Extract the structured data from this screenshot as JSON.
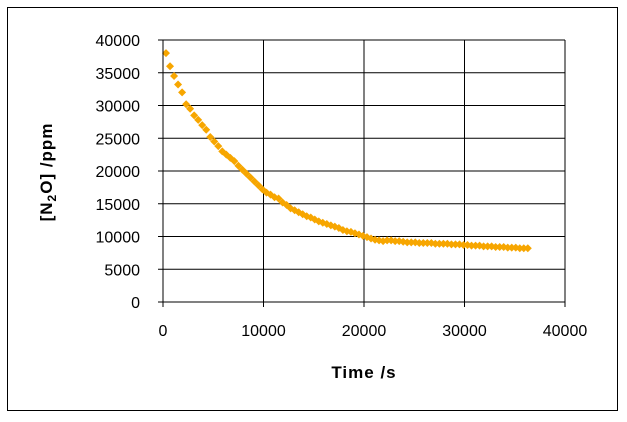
{
  "chart_data": {
    "type": "scatter",
    "xlabel": "Time /s",
    "ylabel": {
      "before": "[N",
      "sub": "2",
      "after": "O] /ppm"
    },
    "xlim": [
      0,
      40000
    ],
    "ylim": [
      0,
      40000
    ],
    "xticks": [
      "0",
      "10000",
      "20000",
      "30000",
      "40000"
    ],
    "yticks": [
      "0",
      "5000",
      "10000",
      "15000",
      "20000",
      "25000",
      "30000",
      "35000",
      "40000"
    ],
    "grid": true,
    "marker": "diamond",
    "color": "#f7a600",
    "series": [
      {
        "x": [
          300,
          700,
          1100,
          1500,
          1900,
          2300,
          2700,
          3100,
          3500,
          3900,
          4300,
          4700,
          5100,
          5500,
          5900,
          6300,
          6700,
          7100,
          7500,
          7900,
          8300,
          8700,
          9100,
          9500,
          9900,
          10300,
          10700,
          11100,
          11500,
          11900,
          12300,
          12700,
          13100,
          13500,
          13900,
          14300,
          14700,
          15100,
          15500,
          15900,
          16300,
          16700,
          17100,
          17500,
          17900,
          18300,
          18700,
          19100,
          19500,
          19900,
          20300,
          20700,
          21100,
          21500,
          21900,
          22300,
          22700,
          23100,
          23500,
          23900,
          24300,
          24700,
          25100,
          25500,
          25900,
          26300,
          26700,
          27100,
          27500,
          27900,
          28300,
          28700,
          29100,
          29500,
          29900,
          30300,
          30700,
          31100,
          31500,
          31900,
          32300,
          32700,
          33100,
          33500,
          33900,
          34300,
          34700,
          35100,
          35500,
          35900,
          36300
        ],
        "y": [
          38000,
          36000,
          34500,
          33200,
          32000,
          30200,
          29500,
          28500,
          27800,
          27000,
          26300,
          25200,
          24500,
          23800,
          23000,
          22500,
          22000,
          21500,
          20800,
          20200,
          19600,
          19000,
          18400,
          17800,
          17200,
          16700,
          16400,
          16000,
          15800,
          15200,
          14800,
          14300,
          14000,
          13700,
          13400,
          13100,
          12900,
          12600,
          12300,
          12100,
          11900,
          11700,
          11500,
          11300,
          11000,
          10800,
          10700,
          10500,
          10300,
          10100,
          9900,
          9700,
          9500,
          9400,
          9300,
          9400,
          9400,
          9300,
          9300,
          9200,
          9100,
          9100,
          9100,
          9000,
          9000,
          9000,
          9000,
          8900,
          8900,
          8900,
          8900,
          8800,
          8800,
          8800,
          8700,
          8700,
          8600,
          8600,
          8600,
          8500,
          8500,
          8500,
          8400,
          8400,
          8400,
          8300,
          8300,
          8300,
          8200,
          8200,
          8200
        ]
      }
    ]
  }
}
